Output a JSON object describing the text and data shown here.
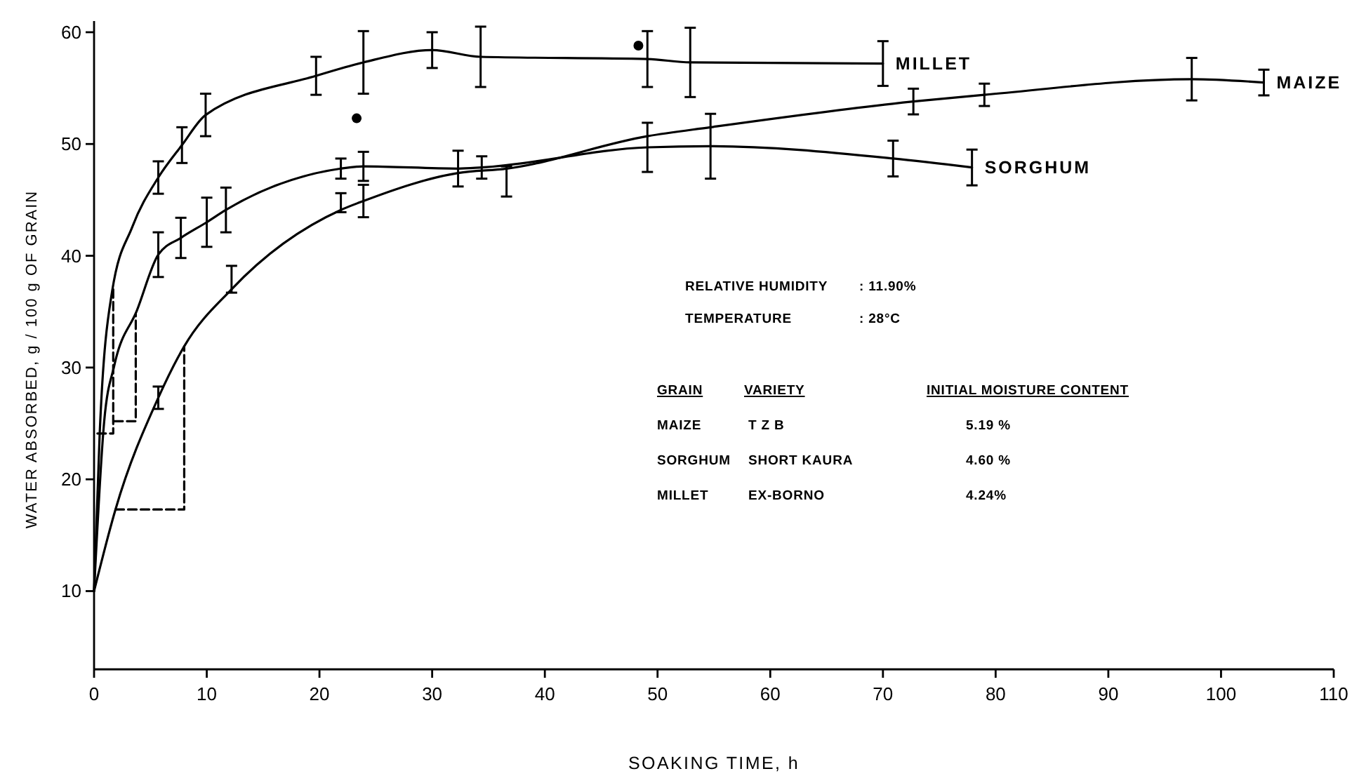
{
  "chart_data": {
    "type": "line",
    "xlabel": "SOAKING TIME, h",
    "ylabel": "WATER ABSORBED, g / 100 g OF GRAIN",
    "xlim": [
      0,
      110
    ],
    "xticks": [
      0,
      10,
      20,
      30,
      40,
      50,
      60,
      70,
      80,
      90,
      100,
      110
    ],
    "ylim": [
      3,
      61
    ],
    "yticks": [
      10,
      20,
      30,
      40,
      50,
      60
    ],
    "grid": false,
    "legend": false,
    "marker": "none",
    "line_style": "solid",
    "annotations": [
      "RELATIVE HUMIDITY",
      ": 11.90%",
      "TEMPERATURE",
      ": 28°C",
      "GRAIN",
      "VARIETY",
      "INITIAL MOISTURE CONTENT",
      "MAIZE",
      "T Z B",
      "5.19 %",
      "SORGHUM",
      "SHORT KAURA",
      "4.60 %",
      "MILLET",
      "EX-BORNO",
      "4.24%"
    ],
    "series": [
      {
        "name": "MILLET",
        "color": "#000000",
        "x": [
          0,
          0.5,
          1.6,
          3.4,
          5.7,
          7.8,
          9.9,
          19.7,
          23.9,
          30.0,
          34.3,
          49.1,
          52.9,
          70.0
        ],
        "values": [
          10,
          24.1,
          36.8,
          42.6,
          47.0,
          49.9,
          52.6,
          56.1,
          57.3,
          58.4,
          57.8,
          57.6,
          57.3,
          57.2
        ],
        "errors": [
          null,
          null,
          null,
          null,
          1.45,
          1.6,
          1.9,
          1.7,
          2.8,
          1.6,
          2.7,
          2.5,
          3.1,
          2.0
        ]
      },
      {
        "name": "SORGHUM",
        "color": "#000000",
        "x": [
          0,
          0.9,
          1.8,
          3.8,
          5.7,
          7.7,
          10.0,
          11.7,
          21.9,
          23.9,
          32.3,
          34.4,
          49.1,
          54.7,
          70.9,
          77.9
        ],
        "values": [
          10,
          25.2,
          30.2,
          35.1,
          40.1,
          41.6,
          43.0,
          44.1,
          47.8,
          48.0,
          47.8,
          47.9,
          49.7,
          49.8,
          48.7,
          47.9
        ],
        "errors": [
          null,
          null,
          null,
          null,
          2.0,
          1.8,
          2.2,
          2.0,
          0.9,
          1.3,
          1.6,
          1.0,
          2.2,
          2.9,
          1.6,
          1.6
        ]
      },
      {
        "name": "MAIZE",
        "color": "#000000",
        "x": [
          0,
          1.9,
          5.7,
          8.0,
          12.2,
          21.9,
          23.9,
          32.3,
          36.6,
          49.1,
          54.7,
          72.7,
          79.0,
          97.4,
          103.8
        ],
        "values": [
          10,
          17.3,
          27.3,
          31.9,
          37.0,
          44.1,
          44.9,
          47.4,
          47.8,
          50.7,
          51.5,
          53.8,
          54.4,
          55.8,
          55.5
        ],
        "errors": [
          null,
          null,
          1.0,
          null,
          [
            36.7,
            39.1
          ],
          [
            43.9,
            45.6
          ],
          1.45,
          null,
          [
            45.3,
            48.0
          ],
          null,
          null,
          1.15,
          1.0,
          1.9,
          1.15
        ]
      },
      {
        "type": "step",
        "color": "#000000",
        "line_style": "dashed",
        "x": [
          0.3,
          1.7,
          null,
          1.9,
          8.0,
          null,
          1.8,
          3.7
        ],
        "values": [
          24.1,
          37.1,
          null,
          17.3,
          31.9,
          null,
          25.2,
          34.8
        ]
      },
      {
        "type": "scatter",
        "color": "#000000",
        "marker": "circle",
        "x": [
          48.3
        ],
        "values": [
          58.8
        ]
      },
      {
        "type": "scatter",
        "color": "#000000",
        "marker": "circle",
        "x": [
          23.3
        ],
        "values": [
          52.3
        ]
      }
    ]
  }
}
